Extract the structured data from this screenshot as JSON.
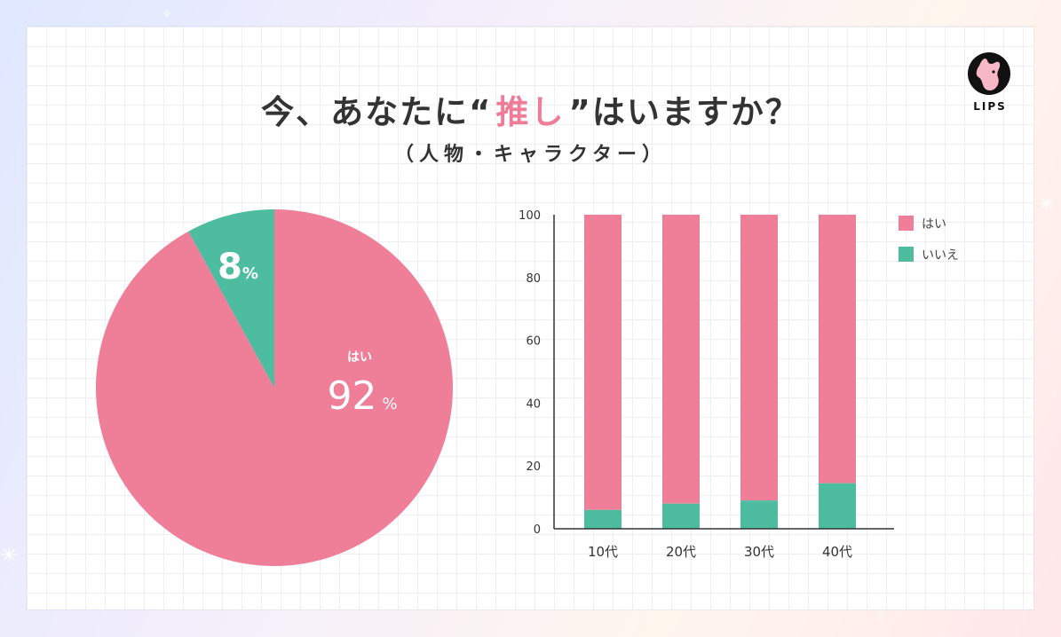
{
  "title": {
    "pre": "今、あなたに",
    "open_quote": "“",
    "highlight": "推し",
    "close_quote": "”",
    "post": "はいますか？"
  },
  "subtitle": "（人物・キャラクター）",
  "logo": {
    "text": "LIPS",
    "icon": "deer-logo-icon"
  },
  "colors": {
    "yes": "#ef7e99",
    "no": "#4dbc9f",
    "accent_highlight": "#fbe9a6"
  },
  "chart_data": [
    {
      "type": "pie",
      "slices": [
        {
          "label": "はい",
          "value": 92,
          "display": "92",
          "unit": "%"
        },
        {
          "label": "いいえ",
          "value": 8,
          "display": "8",
          "unit": "%"
        }
      ]
    },
    {
      "type": "bar",
      "stacked": true,
      "categories": [
        "10代",
        "20代",
        "30代",
        "40代"
      ],
      "series": [
        {
          "name": "いいえ",
          "values": [
            6,
            8,
            9,
            14.5
          ]
        },
        {
          "name": "はい",
          "values": [
            94,
            92,
            91,
            85.5
          ]
        }
      ],
      "ylim": [
        0,
        100
      ],
      "yticks": [
        "0",
        "20",
        "40",
        "60",
        "80",
        "100"
      ],
      "legend": [
        "はい",
        "いいえ"
      ],
      "legend_position": "top-right"
    }
  ]
}
